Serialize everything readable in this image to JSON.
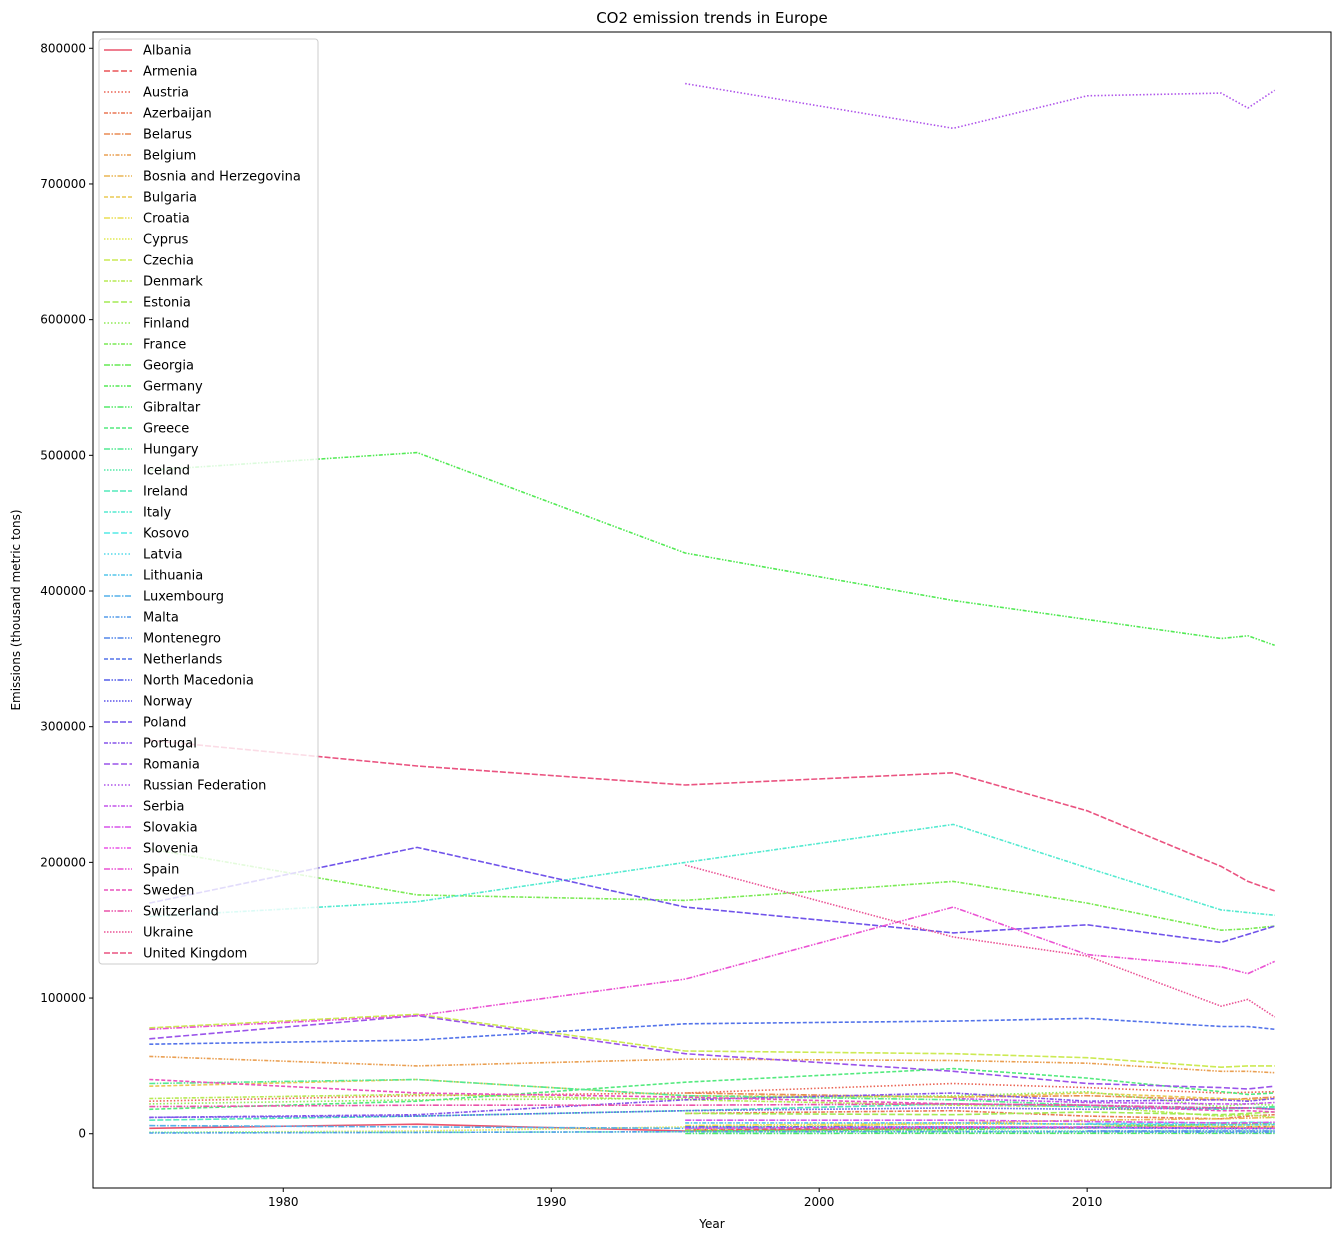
{
  "chart_data": {
    "type": "line",
    "title": "CO2 emission trends in Europe",
    "xlabel": "Year",
    "ylabel": "Emissions (thousand metric tons)",
    "xlim": [
      1972.9,
      2019.1
    ],
    "ylim": [
      -40000,
      812000
    ],
    "xticks": [
      1980,
      1990,
      2000,
      2010
    ],
    "yticks": [
      0,
      100000,
      200000,
      300000,
      400000,
      500000,
      600000,
      700000,
      800000
    ],
    "grid": false,
    "legend_position": "upper-left",
    "palette": "husl",
    "x": [
      1975,
      1985,
      1995,
      2005,
      2010,
      2015,
      2016,
      2017
    ],
    "series": [
      {
        "name": "Albania",
        "values": [
          4000,
          7000,
          2000,
          4000,
          4500,
          4500,
          4300,
          4700
        ]
      },
      {
        "name": "Armenia",
        "values": [
          null,
          null,
          3000,
          4500,
          4200,
          5200,
          5000,
          5300
        ]
      },
      {
        "name": "Austria",
        "values": [
          24000,
          28000,
          30000,
          37000,
          34000,
          30000,
          30500,
          31000
        ]
      },
      {
        "name": "Azerbaijan",
        "values": [
          null,
          null,
          15000,
          17000,
          13000,
          11000,
          13000,
          14000
        ]
      },
      {
        "name": "Belarus",
        "values": [
          null,
          null,
          30000,
          27000,
          28000,
          25000,
          26000,
          27000
        ]
      },
      {
        "name": "Belgium",
        "values": [
          57000,
          50000,
          55000,
          54000,
          52000,
          46000,
          46000,
          45000
        ]
      },
      {
        "name": "Bosnia and Herzegovina",
        "values": [
          null,
          null,
          3000,
          8000,
          10000,
          11000,
          11500,
          12000
        ]
      },
      {
        "name": "Bulgaria",
        "values": [
          35000,
          40000,
          28000,
          27000,
          30000,
          26000,
          25000,
          26000
        ]
      },
      {
        "name": "Croatia",
        "values": [
          null,
          null,
          6000,
          8000,
          7000,
          5000,
          5000,
          5000
        ]
      },
      {
        "name": "Cyprus",
        "values": [
          1000,
          2000,
          5000,
          7000,
          7000,
          6000,
          6500,
          6500
        ]
      },
      {
        "name": "Czechia",
        "values": [
          78000,
          88000,
          61000,
          59000,
          56000,
          49000,
          50000,
          50000
        ]
      },
      {
        "name": "Denmark",
        "values": [
          26000,
          29000,
          25000,
          21000,
          20000,
          13000,
          14000,
          12000
        ]
      },
      {
        "name": "Estonia",
        "values": [
          null,
          null,
          15000,
          14000,
          16000,
          14000,
          15000,
          16000
        ]
      },
      {
        "name": "Finland",
        "values": [
          22000,
          25000,
          26000,
          28000,
          31000,
          20000,
          22000,
          21000
        ]
      },
      {
        "name": "France",
        "values": [
          210000,
          176000,
          172000,
          186000,
          170000,
          150000,
          151000,
          153000
        ]
      },
      {
        "name": "Georgia",
        "values": [
          null,
          null,
          2000,
          3000,
          5000,
          7000,
          7500,
          7500
        ]
      },
      {
        "name": "Germany",
        "values": [
          489000,
          502000,
          428000,
          393000,
          379000,
          365000,
          367000,
          360000
        ]
      },
      {
        "name": "Gibraltar",
        "values": [
          null,
          null,
          200,
          300,
          300,
          300,
          300,
          300
        ]
      },
      {
        "name": "Greece",
        "values": [
          18000,
          24000,
          38000,
          48000,
          41000,
          31000,
          29000,
          30000
        ]
      },
      {
        "name": "Hungary",
        "values": [
          37000,
          40000,
          28000,
          25000,
          21000,
          19000,
          19000,
          20000
        ]
      },
      {
        "name": "Iceland",
        "values": [
          1000,
          1000,
          1500,
          2000,
          2000,
          2000,
          2000,
          2000
        ]
      },
      {
        "name": "Ireland",
        "values": [
          10000,
          13000,
          17000,
          22000,
          20000,
          18000,
          19000,
          19000
        ]
      },
      {
        "name": "Italy",
        "values": [
          160000,
          171000,
          200000,
          228000,
          196000,
          165000,
          163000,
          161000
        ]
      },
      {
        "name": "Kosovo",
        "values": [
          null,
          null,
          null,
          null,
          7500,
          8000,
          8500,
          8000
        ]
      },
      {
        "name": "Latvia",
        "values": [
          null,
          null,
          5000,
          4000,
          4500,
          3500,
          3500,
          3600
        ]
      },
      {
        "name": "Lithuania",
        "values": [
          null,
          null,
          8000,
          8000,
          7000,
          6500,
          6500,
          6700
        ]
      },
      {
        "name": "Luxembourg",
        "values": [
          6000,
          5000,
          4000,
          5000,
          4500,
          4000,
          4000,
          4000
        ]
      },
      {
        "name": "Malta",
        "values": [
          500,
          1000,
          1500,
          1500,
          1500,
          1000,
          1000,
          1000
        ]
      },
      {
        "name": "Montenegro",
        "values": [
          null,
          null,
          null,
          null,
          2000,
          2000,
          2000,
          2000
        ]
      },
      {
        "name": "Netherlands",
        "values": [
          66000,
          69000,
          81000,
          83000,
          85000,
          79000,
          79000,
          77000
        ]
      },
      {
        "name": "North Macedonia",
        "values": [
          null,
          null,
          5000,
          5000,
          4500,
          4000,
          4000,
          4000
        ]
      },
      {
        "name": "Norway",
        "values": [
          12000,
          13000,
          17000,
          19000,
          18000,
          19000,
          19000,
          18000
        ]
      },
      {
        "name": "Poland",
        "values": [
          170000,
          211000,
          167000,
          148000,
          154000,
          141000,
          147000,
          153000
        ]
      },
      {
        "name": "Portugal",
        "values": [
          12000,
          14000,
          25000,
          30000,
          24000,
          25000,
          24000,
          26000
        ]
      },
      {
        "name": "Romania",
        "values": [
          70000,
          87000,
          59000,
          46000,
          37000,
          34000,
          33000,
          35000
        ]
      },
      {
        "name": "Russian Federation",
        "values": [
          null,
          null,
          774000,
          741000,
          765000,
          767000,
          756000,
          769000
        ]
      },
      {
        "name": "Serbia",
        "values": [
          null,
          null,
          null,
          26000,
          23000,
          22000,
          22000,
          23000
        ]
      },
      {
        "name": "Slovakia",
        "values": [
          null,
          null,
          10000,
          10000,
          9000,
          8000,
          8000,
          8500
        ]
      },
      {
        "name": "Slovenia",
        "values": [
          null,
          null,
          4000,
          5000,
          5000,
          4000,
          4000,
          4000
        ]
      },
      {
        "name": "Spain",
        "values": [
          77000,
          87000,
          114000,
          167000,
          132000,
          123000,
          118000,
          127000
        ]
      },
      {
        "name": "Sweden",
        "values": [
          40000,
          30000,
          27000,
          22000,
          21000,
          17000,
          17000,
          16000
        ]
      },
      {
        "name": "Switzerland",
        "values": [
          20000,
          21000,
          21000,
          22000,
          21000,
          19000,
          19000,
          18000
        ]
      },
      {
        "name": "Ukraine",
        "values": [
          null,
          null,
          198000,
          145000,
          131000,
          94000,
          99000,
          86000
        ]
      },
      {
        "name": "United Kingdom",
        "values": [
          290000,
          271000,
          257000,
          266000,
          238000,
          197000,
          186000,
          179000
        ]
      }
    ]
  }
}
